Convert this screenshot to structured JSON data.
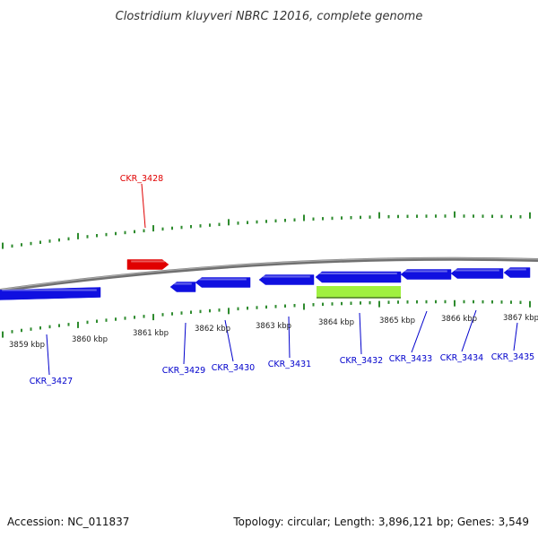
{
  "title": "Clostridium kluyveri NBRC 12016, complete genome",
  "accession": "Accession: NC_011837",
  "summary": "Topology: circular; Length: 3,896,121 bp; Genes: 3,549",
  "colors": {
    "backbone": "#808080",
    "tick": "#2e8b2e",
    "forward_gene": "#e00000",
    "reverse_gene": "#1010e0",
    "highlight_gene": "#a0f040",
    "forward_label": "#e00000",
    "reverse_label": "#0000cc"
  },
  "ticks": [
    {
      "label": "3859 kbp"
    },
    {
      "label": "3860 kbp"
    },
    {
      "label": "3861 kbp"
    },
    {
      "label": "3862 kbp"
    },
    {
      "label": "3863 kbp"
    },
    {
      "label": "3864 kbp"
    },
    {
      "label": "3865 kbp"
    },
    {
      "label": "3866 kbp"
    },
    {
      "label": "3867 kbp"
    }
  ],
  "genes": [
    {
      "id": "CKR_3427",
      "strand": "reverse"
    },
    {
      "id": "CKR_3428",
      "strand": "forward"
    },
    {
      "id": "CKR_3429",
      "strand": "reverse"
    },
    {
      "id": "CKR_3430",
      "strand": "reverse"
    },
    {
      "id": "CKR_3431",
      "strand": "reverse"
    },
    {
      "id": "CKR_3432",
      "strand": "reverse"
    },
    {
      "id": "CKR_3433",
      "strand": "reverse"
    },
    {
      "id": "CKR_3434",
      "strand": "reverse"
    },
    {
      "id": "CKR_3435",
      "strand": "reverse"
    }
  ]
}
